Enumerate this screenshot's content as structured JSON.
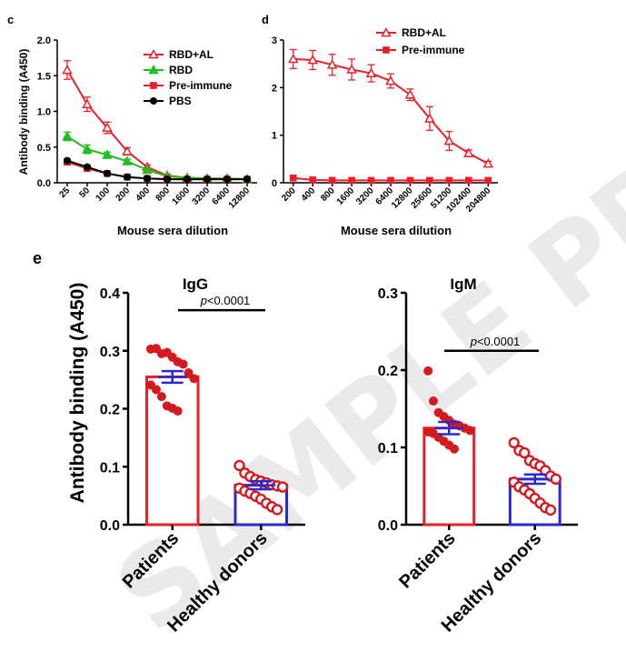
{
  "watermark": "SAMPLE PREVIEW",
  "chart_data": [
    {
      "panel": "c",
      "type": "line",
      "ylabel": "Antibody binding (A450)",
      "xlabel": "Mouse sera dilution",
      "categories": [
        "25",
        "50",
        "100",
        "200",
        "400",
        "800",
        "1600",
        "3200",
        "6400",
        "12800"
      ],
      "ylim": [
        0,
        2.0
      ],
      "yticks": [
        "0.0",
        "0.5",
        "1.0",
        "1.5",
        "2.0"
      ],
      "legend_position": "top-right",
      "series": [
        {
          "name": "RBD+AL",
          "color": "#e8202a",
          "marker": "triangle-open",
          "values": [
            1.58,
            1.1,
            0.77,
            0.44,
            0.22,
            0.1,
            0.07,
            0.06,
            0.06,
            0.05
          ],
          "errors": [
            0.13,
            0.1,
            0.08,
            0.05,
            0.03,
            0.02,
            0.01,
            0.01,
            0.01,
            0.01
          ]
        },
        {
          "name": "RBD",
          "color": "#1fbf1f",
          "marker": "triangle-filled",
          "values": [
            0.65,
            0.47,
            0.39,
            0.3,
            0.18,
            0.09,
            0.07,
            0.06,
            0.06,
            0.05
          ],
          "errors": [
            0.06,
            0.06,
            0.04,
            0.03,
            0.02,
            0.01,
            0.01,
            0.01,
            0.01,
            0.01
          ]
        },
        {
          "name": "Pre-immune",
          "color": "#e8202a",
          "marker": "square-filled",
          "values": [
            0.29,
            0.2,
            0.13,
            0.08,
            0.06,
            0.05,
            0.05,
            0.05,
            0.05,
            0.05
          ],
          "errors": [
            0.02,
            0.02,
            0.01,
            0.01,
            0.01,
            0.01,
            0.01,
            0.01,
            0.01,
            0.01
          ]
        },
        {
          "name": "PBS",
          "color": "#000000",
          "marker": "circle-filled",
          "values": [
            0.31,
            0.22,
            0.13,
            0.08,
            0.06,
            0.05,
            0.05,
            0.05,
            0.05,
            0.05
          ],
          "errors": [
            0.02,
            0.02,
            0.01,
            0.01,
            0.01,
            0.01,
            0.01,
            0.01,
            0.01,
            0.01
          ]
        }
      ]
    },
    {
      "panel": "d",
      "type": "line",
      "ylabel": "",
      "xlabel": "Mouse sera dilution",
      "categories": [
        "200",
        "400",
        "800",
        "1600",
        "3200",
        "6400",
        "12800",
        "25600",
        "51200",
        "102400",
        "204800"
      ],
      "ylim": [
        0,
        3
      ],
      "yticks": [
        "0",
        "1",
        "2",
        "3"
      ],
      "legend_position": "top-right",
      "series": [
        {
          "name": "RBD+AL",
          "color": "#e8202a",
          "marker": "triangle-open",
          "values": [
            2.6,
            2.58,
            2.48,
            2.38,
            2.3,
            2.14,
            1.85,
            1.35,
            0.88,
            0.62,
            0.4
          ],
          "errors": [
            0.2,
            0.2,
            0.22,
            0.22,
            0.18,
            0.15,
            0.12,
            0.25,
            0.2,
            0.07,
            0.05
          ]
        },
        {
          "name": "Pre-immune",
          "color": "#e8202a",
          "marker": "square-filled",
          "values": [
            0.1,
            0.06,
            0.05,
            0.05,
            0.05,
            0.05,
            0.05,
            0.05,
            0.05,
            0.05,
            0.05
          ],
          "errors": [
            0,
            0,
            0,
            0,
            0,
            0,
            0,
            0,
            0,
            0,
            0
          ]
        }
      ]
    },
    {
      "panel": "e",
      "type": "bar",
      "title": "IgG",
      "ylabel": "Antibody binding (A450)",
      "xlabel": "",
      "categories": [
        "Patients",
        "Healthy donors"
      ],
      "values": [
        0.255,
        0.068
      ],
      "errors": [
        0.01,
        0.007
      ],
      "ylim": [
        0,
        0.4
      ],
      "yticks": [
        "0.0",
        "0.1",
        "0.2",
        "0.3",
        "0.4"
      ],
      "significance": "p<0.0001",
      "points": [
        [
          0.303,
          0.304,
          0.295,
          0.297,
          0.289,
          0.281,
          0.277,
          0.262,
          0.252,
          0.241,
          0.233,
          0.221,
          0.205,
          0.201,
          0.196
        ],
        [
          0.102,
          0.089,
          0.083,
          0.078,
          0.075,
          0.072,
          0.069,
          0.067,
          0.065,
          0.063,
          0.058,
          0.054,
          0.049,
          0.044,
          0.037,
          0.031,
          0.026
        ]
      ],
      "bar_colors": [
        "#e8202a",
        "#2a2acc"
      ],
      "point_color": "#d4191f"
    },
    {
      "panel": "e",
      "type": "bar",
      "title": "IgM",
      "ylabel": "",
      "xlabel": "",
      "categories": [
        "Patients",
        "Healthy donors"
      ],
      "values": [
        0.125,
        0.059
      ],
      "errors": [
        0.008,
        0.006
      ],
      "ylim": [
        0,
        0.3
      ],
      "yticks": [
        "0.0",
        "0.1",
        "0.2",
        "0.3"
      ],
      "significance": "p<0.0001",
      "points": [
        [
          0.199,
          0.16,
          0.145,
          0.14,
          0.135,
          0.13,
          0.128,
          0.125,
          0.122,
          0.12,
          0.118,
          0.113,
          0.108,
          0.103,
          0.098
        ],
        [
          0.106,
          0.096,
          0.093,
          0.083,
          0.079,
          0.076,
          0.07,
          0.063,
          0.059,
          0.055,
          0.049,
          0.045,
          0.04,
          0.034,
          0.028,
          0.022,
          0.019
        ]
      ],
      "bar_colors": [
        "#e8202a",
        "#2a2acc"
      ],
      "point_color": "#d4191f"
    }
  ]
}
